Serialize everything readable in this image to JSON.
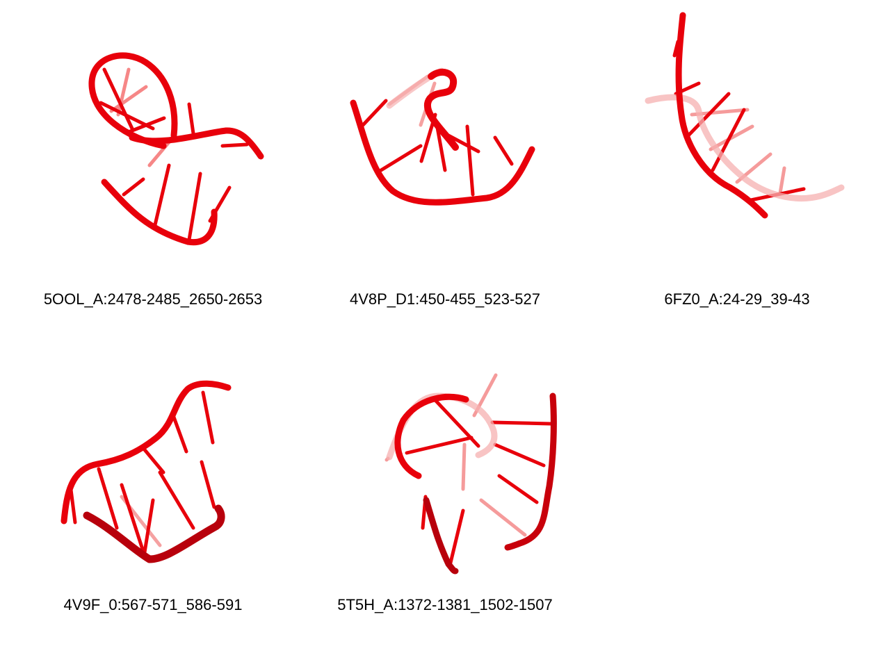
{
  "colors": {
    "backbone": "#e8000b",
    "backbone_dark": "#a8000a",
    "backbone_light": "#f46a6a",
    "base": "#e8000b",
    "base_light": "#f27a7a"
  },
  "panels": [
    {
      "caption": "5OOL_A:2478-2485_2650-2653"
    },
    {
      "caption": "4V8P_D1:450-455_523-527"
    },
    {
      "caption": "6FZ0_A:24-29_39-43"
    },
    {
      "caption": "4V9F_0:567-571_586-591"
    },
    {
      "caption": "5T5H_A:1372-1381_1502-1507"
    }
  ]
}
